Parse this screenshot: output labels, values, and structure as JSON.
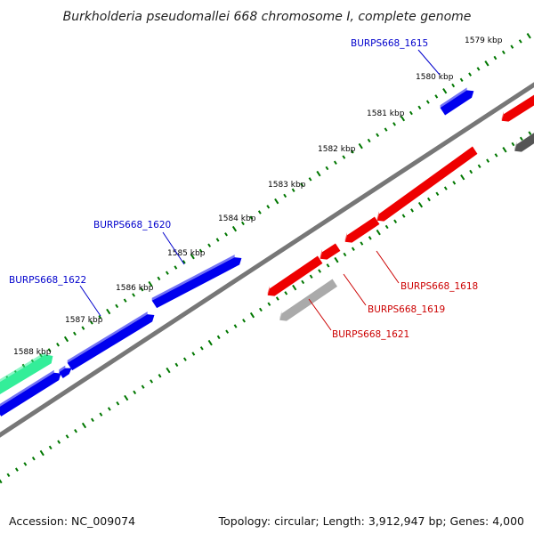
{
  "title": "Burkholderia pseudomallei 668 chromosome I, complete genome",
  "footer": {
    "accession": "Accession: NC_009074",
    "summary": "Topology: circular; Length: 3,912,947 bp; Genes: 4,000"
  },
  "ticks": [
    {
      "label": "1579 kbp"
    },
    {
      "label": "1580 kbp"
    },
    {
      "label": "1581 kbp"
    },
    {
      "label": "1582 kbp"
    },
    {
      "label": "1583 kbp"
    },
    {
      "label": "1584 kbp"
    },
    {
      "label": "1585 kbp"
    },
    {
      "label": "1586 kbp"
    },
    {
      "label": "1587 kbp"
    },
    {
      "label": "1588 kbp"
    }
  ],
  "gene_labels": [
    {
      "name": "BURPS668_1615",
      "color": "#0000cc"
    },
    {
      "name": "BURPS668_1620",
      "color": "#0000cc"
    },
    {
      "name": "BURPS668_1622",
      "color": "#0000cc"
    },
    {
      "name": "BURPS668_1618",
      "color": "#cc0000"
    },
    {
      "name": "BURPS668_1619",
      "color": "#cc0000"
    },
    {
      "name": "BURPS668_1621",
      "color": "#cc0000"
    }
  ],
  "colors": {
    "forward_gene": "#0000ee",
    "reverse_gene": "#ee0000",
    "rna_gene": "#33ee99",
    "pseudo_gene": "#aaaaaa",
    "dark_gene": "#555555",
    "backbone": "#777777",
    "tick": "#007700"
  }
}
